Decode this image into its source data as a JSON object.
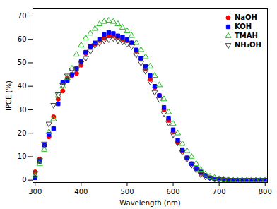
{
  "chart_data": {
    "type": "scatter",
    "xlabel": "Wavelength (nm)",
    "ylabel": "IPCE (%)",
    "xlim": [
      295,
      805
    ],
    "ylim": [
      -1,
      73
    ],
    "xticks": [
      300,
      400,
      500,
      600,
      700,
      800
    ],
    "yticks": [
      0,
      10,
      20,
      30,
      40,
      50,
      60,
      70
    ],
    "legend": "upper right",
    "x": [
      300,
      310,
      320,
      330,
      340,
      350,
      360,
      370,
      380,
      390,
      400,
      410,
      420,
      430,
      440,
      450,
      460,
      470,
      480,
      490,
      500,
      510,
      520,
      530,
      540,
      550,
      560,
      570,
      580,
      590,
      600,
      610,
      620,
      630,
      640,
      650,
      660,
      670,
      680,
      690,
      700,
      710,
      720,
      730,
      740,
      750,
      760,
      770,
      780,
      790,
      800
    ],
    "series": [
      {
        "name": "NaOH",
        "color": "red",
        "marker": "circle",
        "values": [
          3.5,
          9.0,
          15.0,
          18.5,
          27.0,
          34.5,
          38.0,
          43.5,
          44.5,
          45.5,
          49.0,
          54.0,
          57.0,
          58.0,
          59.5,
          60.5,
          61.5,
          61.5,
          61.0,
          60.0,
          59.5,
          58.5,
          55.0,
          51.5,
          47.5,
          43.0,
          39.5,
          36.0,
          30.0,
          25.5,
          20.5,
          16.0,
          12.5,
          9.5,
          7.0,
          5.0,
          3.0,
          2.0,
          1.0,
          0.5,
          0.3,
          0.2,
          0.1,
          0.0,
          0.0,
          0.0,
          0.0,
          0.0,
          0.0,
          0.0,
          0.0
        ]
      },
      {
        "name": "KOH",
        "color": "blue",
        "marker": "square",
        "values": [
          1.0,
          8.0,
          15.0,
          19.5,
          22.0,
          32.5,
          41.5,
          42.5,
          45.0,
          47.5,
          50.5,
          54.5,
          57.0,
          58.5,
          60.0,
          62.0,
          63.0,
          62.5,
          61.5,
          61.0,
          60.0,
          58.5,
          55.5,
          52.0,
          48.5,
          44.5,
          40.0,
          36.0,
          31.0,
          26.5,
          21.5,
          17.0,
          13.0,
          9.5,
          7.0,
          5.0,
          3.5,
          2.0,
          1.0,
          0.5,
          0.3,
          0.2,
          0.1,
          0.0,
          0.0,
          0.0,
          0.0,
          0.0,
          0.0,
          0.0,
          0.0
        ]
      },
      {
        "name": "TMAH",
        "color": "#22bb22",
        "marker": "triangle-up-open",
        "values": [
          2.0,
          7.0,
          13.0,
          20.5,
          26.0,
          36.0,
          40.0,
          43.5,
          47.5,
          53.5,
          57.5,
          60.5,
          62.5,
          64.5,
          66.5,
          67.5,
          68.0,
          67.5,
          66.5,
          65.0,
          63.5,
          61.5,
          58.5,
          55.5,
          52.5,
          48.5,
          44.5,
          40.5,
          34.5,
          29.0,
          24.0,
          20.0,
          15.5,
          12.5,
          10.0,
          7.0,
          4.5,
          2.5,
          1.5,
          1.0,
          0.5,
          0.3,
          0.2,
          0.1,
          0.0,
          0.0,
          0.0,
          0.0,
          0.0,
          0.0,
          0.0
        ]
      },
      {
        "name": "NH₄OH",
        "color": "#444444",
        "marker": "triangle-down-open",
        "values": [
          3.0,
          8.5,
          15.5,
          24.0,
          32.0,
          36.5,
          40.5,
          44.5,
          47.0,
          47.5,
          50.0,
          52.0,
          55.0,
          57.5,
          58.5,
          59.5,
          60.0,
          60.5,
          59.5,
          59.0,
          58.0,
          57.0,
          53.5,
          50.0,
          46.5,
          42.0,
          37.5,
          34.5,
          28.5,
          24.5,
          19.5,
          16.0,
          12.0,
          9.0,
          6.5,
          4.5,
          2.5,
          1.5,
          1.0,
          0.5,
          0.3,
          0.1,
          0.1,
          0.0,
          0.0,
          0.0,
          0.0,
          0.0,
          0.0,
          0.0,
          0.0
        ]
      }
    ]
  }
}
